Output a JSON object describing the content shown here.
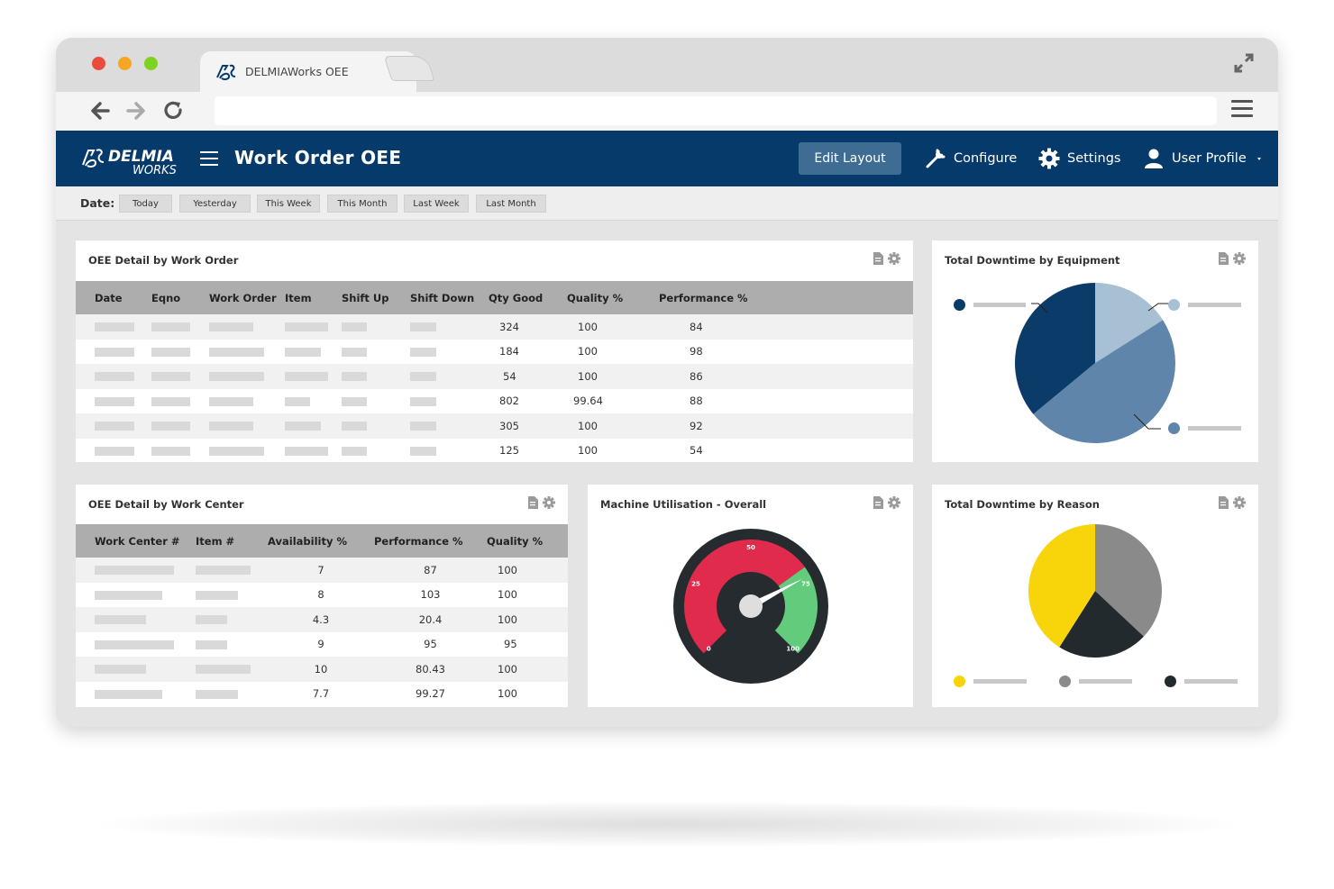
{
  "browser": {
    "tab_title": "DELMIAWorks OEE",
    "traffic_light_colors": [
      "#e94b3c",
      "#f5a623",
      "#7ed321"
    ]
  },
  "header": {
    "logo_main": "DELMIA",
    "logo_sub": "WORKS",
    "title": "Work Order OEE",
    "edit_layout_label": "Edit Layout",
    "configure_label": "Configure",
    "settings_label": "Settings",
    "user_profile_label": "User Profile",
    "background_color": "#063a6b"
  },
  "date_filter": {
    "label": "Date:",
    "options": [
      "Today",
      "Yesterday",
      "This Week",
      "This Month",
      "Last Week",
      "Last Month"
    ]
  },
  "oee_work_order": {
    "title": "OEE Detail by Work Order",
    "columns": [
      "Date",
      "Eqno",
      "Work Order",
      "Item",
      "Shift Up",
      "Shift Down",
      "Qty Good",
      "Quality %",
      "Performance %"
    ],
    "rows": [
      {
        "qty_good": "324",
        "quality": "100",
        "performance": "84"
      },
      {
        "qty_good": "184",
        "quality": "100",
        "performance": "98"
      },
      {
        "qty_good": "54",
        "quality": "100",
        "performance": "86"
      },
      {
        "qty_good": "802",
        "quality": "99.64",
        "performance": "88"
      },
      {
        "qty_good": "305",
        "quality": "100",
        "performance": "92"
      },
      {
        "qty_good": "125",
        "quality": "100",
        "performance": "54"
      }
    ]
  },
  "oee_work_center": {
    "title": "OEE Detail by Work Center",
    "columns": [
      "Work Center #",
      "Item #",
      "Availability %",
      "Performance %",
      "Quality %"
    ],
    "rows": [
      {
        "availability": "7",
        "performance": "87",
        "quality": "100"
      },
      {
        "availability": "8",
        "performance": "103",
        "quality": "100"
      },
      {
        "availability": "4.3",
        "performance": "20.4",
        "quality": "100"
      },
      {
        "availability": "9",
        "performance": "95",
        "quality": "95"
      },
      {
        "availability": "10",
        "performance": "80.43",
        "quality": "100"
      },
      {
        "availability": "7.7",
        "performance": "99.27",
        "quality": "100"
      }
    ]
  },
  "downtime_equipment": {
    "title": "Total Downtime by Equipment",
    "chart_data": {
      "type": "pie",
      "values": [
        16,
        48,
        36
      ],
      "colors": [
        "#a8c0d4",
        "#5f85ab",
        "#0b3b68"
      ],
      "legend_placement": "sides"
    }
  },
  "machine_utilisation": {
    "title": "Machine Utilisation - Overall",
    "chart_data": {
      "type": "gauge",
      "tick_labels": [
        "0",
        "25",
        "50",
        "75",
        "100"
      ],
      "range": [
        0,
        100
      ],
      "value": 73,
      "bands": [
        {
          "from": 0,
          "to": 70,
          "color": "#e02b4d"
        },
        {
          "from": 70,
          "to": 100,
          "color": "#63cc7c"
        }
      ]
    }
  },
  "downtime_reason": {
    "title": "Total Downtime by Reason",
    "chart_data": {
      "type": "pie",
      "values": [
        37,
        22,
        41
      ],
      "colors": [
        "#8a8a8a",
        "#232a2e",
        "#f8d40b"
      ],
      "legend_placement": "bottom"
    }
  }
}
